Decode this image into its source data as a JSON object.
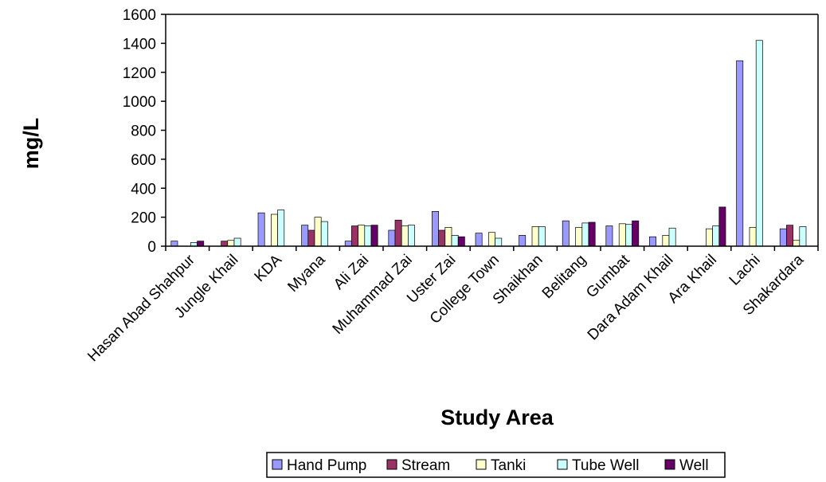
{
  "chart_data": {
    "type": "bar",
    "xlabel": "Study Area",
    "ylabel": "mg/L",
    "ylim": [
      0,
      1600
    ],
    "yticks": [
      0,
      200,
      400,
      600,
      800,
      1000,
      1200,
      1400,
      1600
    ],
    "grid": false,
    "legend_position": "bottom",
    "categories": [
      "Hasan Abad Shahpur",
      "Jungle Khail",
      "KDA",
      "Myana",
      "Ali Zai",
      "Muhammad Zai",
      "Uster Zai",
      "College Town",
      "Shaikhan",
      "Belitang",
      "Gumbat",
      "Dara Adam Khail",
      "Ara Khail",
      "Lachi",
      "Shakardara"
    ],
    "series": [
      {
        "name": "Hand Pump",
        "color": "#9999ff",
        "values": [
          35,
          0,
          230,
          145,
          35,
          110,
          240,
          90,
          75,
          175,
          140,
          65,
          0,
          1280,
          120
        ]
      },
      {
        "name": "Stream",
        "color": "#993366",
        "values": [
          0,
          35,
          0,
          110,
          140,
          180,
          110,
          0,
          0,
          0,
          0,
          0,
          0,
          0,
          145
        ]
      },
      {
        "name": "Tanki",
        "color": "#ffffcc",
        "values": [
          0,
          40,
          220,
          200,
          145,
          140,
          130,
          95,
          135,
          130,
          155,
          75,
          120,
          130,
          40
        ]
      },
      {
        "name": "Tube Well",
        "color": "#ccffff",
        "values": [
          25,
          55,
          250,
          170,
          140,
          145,
          75,
          55,
          135,
          160,
          150,
          125,
          140,
          1420,
          135
        ]
      },
      {
        "name": "Well",
        "color": "#660066",
        "values": [
          35,
          0,
          0,
          0,
          145,
          0,
          65,
          0,
          0,
          165,
          175,
          0,
          270,
          0,
          0
        ]
      }
    ]
  }
}
